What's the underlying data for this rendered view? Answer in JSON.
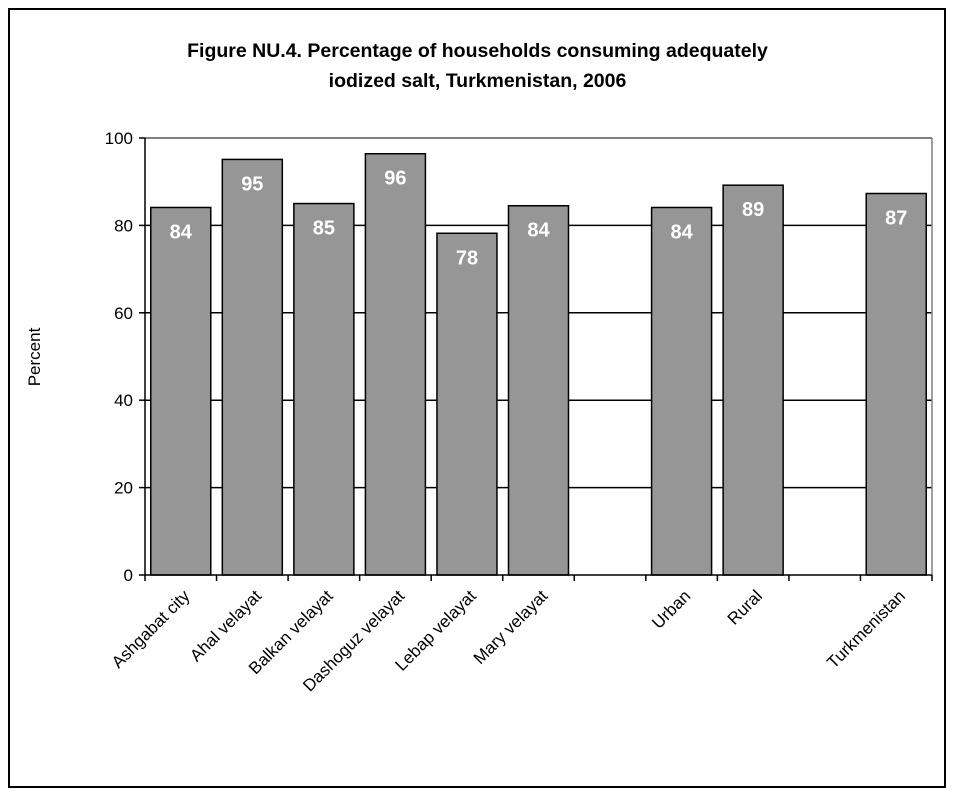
{
  "chart_data": {
    "type": "bar",
    "title": "Figure NU.4. Percentage of households consuming adequately",
    "subtitle": "iodized salt, Turkmenistan, 2006",
    "xlabel": "",
    "ylabel": "Percent",
    "ylim": [
      0,
      100
    ],
    "yticks": [
      0,
      20,
      40,
      60,
      80,
      100
    ],
    "grid": true,
    "categories": [
      "Ashgabat city",
      "Ahal velayat",
      "Balkan velayat",
      "Dashoguz velayat",
      "Lebap velayat",
      "Mary velayat",
      "",
      "Urban",
      "Rural",
      "",
      "Turkmenistan"
    ],
    "values": [
      84.1,
      95.1,
      85,
      96.4,
      78.2,
      84.5,
      null,
      84.1,
      89.2,
      null,
      87.3
    ],
    "data_labels": [
      "84",
      "95",
      "85",
      "96",
      "78",
      "84",
      "",
      "84",
      "89",
      "",
      "87"
    ],
    "colors": {
      "bar": "#969696",
      "bar_stroke": "#000000",
      "data_label": "#ffffff",
      "grid": "#000000"
    }
  }
}
